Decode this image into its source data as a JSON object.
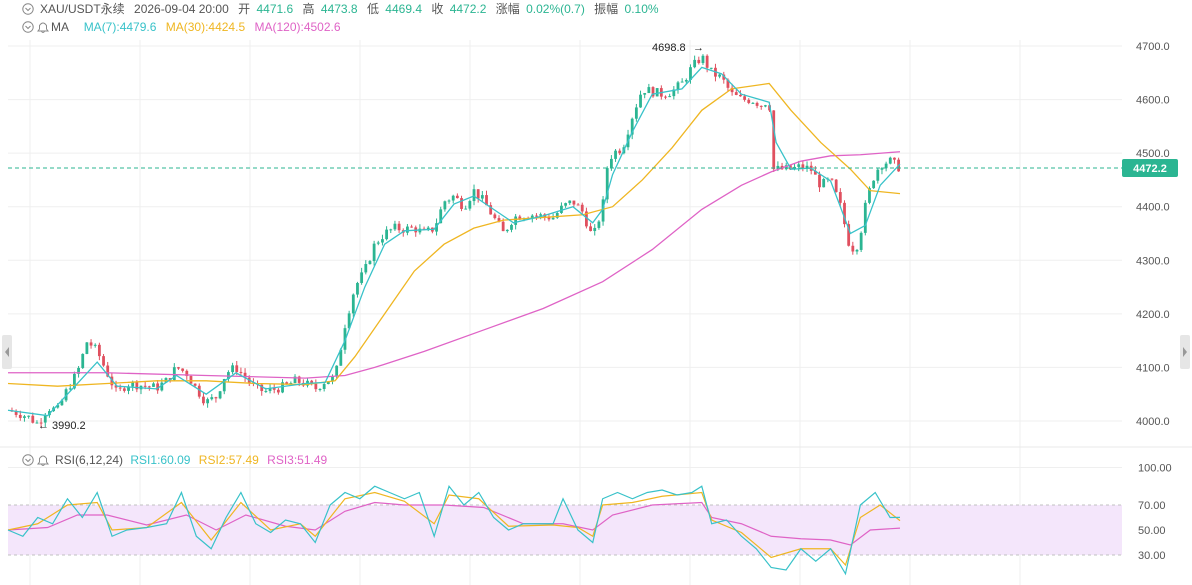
{
  "theme": {
    "up": "#2bb592",
    "down": "#e0505f",
    "ma7": "#38c2c9",
    "ma30": "#efb622",
    "ma120": "#df63c6",
    "rsi1": "#38c2c9",
    "rsi2": "#efb622",
    "rsi3": "#df63c6",
    "grid": "#efefef",
    "rsi_band": "#f4e6fb",
    "current_price_line": "#2bb592"
  },
  "header": {
    "symbol": "XAU/USDT永续",
    "datetime": "2026-09-04 20:00",
    "open_label": "开",
    "open": "4471.6",
    "high_label": "高",
    "high": "4473.8",
    "low_label": "低",
    "low": "4469.4",
    "close_label": "收",
    "close": "4472.2",
    "change_label": "涨幅",
    "change": "0.02%(0.7)",
    "amp_label": "振幅",
    "amp": "0.10%"
  },
  "ma_legend": {
    "name": "MA",
    "ma7": "MA(7):4479.6",
    "ma30": "MA(30):4424.5",
    "ma120": "MA(120):4502.6"
  },
  "rsi_legend": {
    "name": "RSI(6,12,24)",
    "rsi1": "RSI1:60.09",
    "rsi2": "RSI2:57.49",
    "rsi3": "RSI3:51.49"
  },
  "price_axis": {
    "ticks": [
      "4000.0",
      "4100.0",
      "4200.0",
      "4300.0",
      "4400.0",
      "4500.0",
      "4600.0",
      "4700.0"
    ],
    "current_price": "4472.2"
  },
  "rsi_axis": {
    "ticks": [
      "30.00",
      "50.00",
      "70.00",
      "100.00"
    ]
  },
  "annotations": {
    "high_marker": "4698.8",
    "low_marker": "3990.2"
  },
  "chart_data": {
    "type": "line",
    "title": "",
    "price_ylim": [
      3965,
      4730
    ],
    "rsi_ylim": [
      0,
      100
    ],
    "rsi_band": [
      30,
      70
    ],
    "current_price": 4472.2,
    "close_series": [
      [
        0,
        4020
      ],
      [
        10,
        4015
      ],
      [
        20,
        4008
      ],
      [
        30,
        3995
      ],
      [
        40,
        4025
      ],
      [
        50,
        4020
      ],
      [
        60,
        4060
      ],
      [
        70,
        4090
      ],
      [
        80,
        4150
      ],
      [
        90,
        4130
      ],
      [
        100,
        4090
      ],
      [
        110,
        4050
      ],
      [
        120,
        4070
      ],
      [
        130,
        4068
      ],
      [
        140,
        4065
      ],
      [
        150,
        4062
      ],
      [
        160,
        4075
      ],
      [
        170,
        4100
      ],
      [
        180,
        4090
      ],
      [
        190,
        4060
      ],
      [
        200,
        4035
      ],
      [
        210,
        4045
      ],
      [
        220,
        4090
      ],
      [
        230,
        4100
      ],
      [
        240,
        4080
      ],
      [
        250,
        4060
      ],
      [
        260,
        4055
      ],
      [
        270,
        4060
      ],
      [
        280,
        4065
      ],
      [
        290,
        4075
      ],
      [
        300,
        4070
      ],
      [
        310,
        4060
      ],
      [
        320,
        4075
      ],
      [
        330,
        4080
      ],
      [
        340,
        4180
      ],
      [
        350,
        4250
      ],
      [
        360,
        4280
      ],
      [
        370,
        4330
      ],
      [
        380,
        4350
      ],
      [
        390,
        4360
      ],
      [
        400,
        4358
      ],
      [
        410,
        4360
      ],
      [
        420,
        4350
      ],
      [
        430,
        4360
      ],
      [
        440,
        4410
      ],
      [
        450,
        4420
      ],
      [
        460,
        4400
      ],
      [
        470,
        4430
      ],
      [
        480,
        4410
      ],
      [
        490,
        4380
      ],
      [
        500,
        4350
      ],
      [
        510,
        4380
      ],
      [
        520,
        4385
      ],
      [
        530,
        4385
      ],
      [
        540,
        4382
      ],
      [
        550,
        4380
      ],
      [
        560,
        4400
      ],
      [
        570,
        4410
      ],
      [
        580,
        4390
      ],
      [
        590,
        4340
      ],
      [
        600,
        4400
      ],
      [
        605,
        4480
      ],
      [
        610,
        4500
      ],
      [
        620,
        4510
      ],
      [
        630,
        4570
      ],
      [
        640,
        4620
      ],
      [
        650,
        4615
      ],
      [
        660,
        4610
      ],
      [
        670,
        4615
      ],
      [
        680,
        4630
      ],
      [
        690,
        4660
      ],
      [
        700,
        4680
      ],
      [
        710,
        4650
      ],
      [
        720,
        4640
      ],
      [
        730,
        4610
      ],
      [
        740,
        4600
      ],
      [
        750,
        4600
      ],
      [
        760,
        4590
      ],
      [
        768,
        4600
      ],
      [
        772,
        4470
      ],
      [
        780,
        4470
      ],
      [
        790,
        4470
      ],
      [
        800,
        4475
      ],
      [
        810,
        4470
      ],
      [
        820,
        4440
      ],
      [
        830,
        4450
      ],
      [
        840,
        4400
      ],
      [
        850,
        4320
      ],
      [
        858,
        4330
      ],
      [
        865,
        4400
      ],
      [
        872,
        4450
      ],
      [
        880,
        4480
      ],
      [
        890,
        4485
      ],
      [
        900,
        4472
      ]
    ],
    "ma_series": [
      {
        "name": "MA(7)",
        "values": [
          [
            0,
            4020
          ],
          [
            40,
            4010
          ],
          [
            60,
            4050
          ],
          [
            90,
            4110
          ],
          [
            110,
            4065
          ],
          [
            150,
            4060
          ],
          [
            170,
            4085
          ],
          [
            200,
            4050
          ],
          [
            230,
            4090
          ],
          [
            260,
            4060
          ],
          [
            300,
            4070
          ],
          [
            320,
            4072
          ],
          [
            340,
            4150
          ],
          [
            360,
            4250
          ],
          [
            380,
            4330
          ],
          [
            400,
            4355
          ],
          [
            430,
            4358
          ],
          [
            450,
            4405
          ],
          [
            470,
            4420
          ],
          [
            490,
            4395
          ],
          [
            510,
            4370
          ],
          [
            540,
            4383
          ],
          [
            570,
            4400
          ],
          [
            590,
            4370
          ],
          [
            600,
            4395
          ],
          [
            610,
            4460
          ],
          [
            630,
            4540
          ],
          [
            650,
            4610
          ],
          [
            680,
            4620
          ],
          [
            700,
            4660
          ],
          [
            720,
            4648
          ],
          [
            740,
            4610
          ],
          [
            768,
            4595
          ],
          [
            775,
            4520
          ],
          [
            790,
            4470
          ],
          [
            810,
            4472
          ],
          [
            830,
            4448
          ],
          [
            850,
            4350
          ],
          [
            865,
            4365
          ],
          [
            880,
            4440
          ],
          [
            900,
            4479.6
          ]
        ]
      },
      {
        "name": "MA(30)",
        "values": [
          [
            0,
            4070
          ],
          [
            50,
            4065
          ],
          [
            100,
            4070
          ],
          [
            150,
            4075
          ],
          [
            200,
            4075
          ],
          [
            250,
            4070
          ],
          [
            300,
            4068
          ],
          [
            330,
            4075
          ],
          [
            350,
            4120
          ],
          [
            380,
            4200
          ],
          [
            410,
            4280
          ],
          [
            440,
            4330
          ],
          [
            470,
            4360
          ],
          [
            500,
            4375
          ],
          [
            540,
            4380
          ],
          [
            580,
            4385
          ],
          [
            610,
            4400
          ],
          [
            640,
            4450
          ],
          [
            670,
            4510
          ],
          [
            700,
            4580
          ],
          [
            730,
            4620
          ],
          [
            768,
            4630
          ],
          [
            790,
            4580
          ],
          [
            820,
            4520
          ],
          [
            850,
            4470
          ],
          [
            870,
            4430
          ],
          [
            900,
            4424.5
          ]
        ]
      },
      {
        "name": "MA(120)",
        "values": [
          [
            0,
            4090
          ],
          [
            100,
            4090
          ],
          [
            200,
            4085
          ],
          [
            300,
            4080
          ],
          [
            340,
            4085
          ],
          [
            370,
            4100
          ],
          [
            420,
            4130
          ],
          [
            480,
            4170
          ],
          [
            540,
            4210
          ],
          [
            600,
            4260
          ],
          [
            650,
            4320
          ],
          [
            700,
            4395
          ],
          [
            740,
            4440
          ],
          [
            770,
            4465
          ],
          [
            800,
            4485
          ],
          [
            830,
            4495
          ],
          [
            860,
            4497
          ],
          [
            900,
            4502.6
          ]
        ]
      }
    ],
    "rsi_series": [
      {
        "name": "RSI1",
        "values": [
          [
            0,
            50
          ],
          [
            15,
            45
          ],
          [
            30,
            60
          ],
          [
            45,
            55
          ],
          [
            60,
            75
          ],
          [
            75,
            60
          ],
          [
            90,
            80
          ],
          [
            105,
            45
          ],
          [
            120,
            50
          ],
          [
            140,
            52
          ],
          [
            160,
            55
          ],
          [
            175,
            80
          ],
          [
            190,
            45
          ],
          [
            205,
            35
          ],
          [
            220,
            60
          ],
          [
            235,
            80
          ],
          [
            250,
            55
          ],
          [
            265,
            48
          ],
          [
            280,
            58
          ],
          [
            295,
            55
          ],
          [
            310,
            40
          ],
          [
            325,
            70
          ],
          [
            340,
            80
          ],
          [
            355,
            75
          ],
          [
            370,
            85
          ],
          [
            385,
            80
          ],
          [
            400,
            75
          ],
          [
            415,
            80
          ],
          [
            430,
            45
          ],
          [
            445,
            85
          ],
          [
            460,
            70
          ],
          [
            475,
            80
          ],
          [
            490,
            60
          ],
          [
            505,
            50
          ],
          [
            520,
            55
          ],
          [
            535,
            55
          ],
          [
            550,
            55
          ],
          [
            560,
            75
          ],
          [
            575,
            50
          ],
          [
            590,
            40
          ],
          [
            600,
            75
          ],
          [
            615,
            80
          ],
          [
            630,
            75
          ],
          [
            645,
            80
          ],
          [
            660,
            82
          ],
          [
            675,
            78
          ],
          [
            690,
            80
          ],
          [
            700,
            85
          ],
          [
            710,
            55
          ],
          [
            725,
            58
          ],
          [
            740,
            45
          ],
          [
            755,
            35
          ],
          [
            770,
            20
          ],
          [
            785,
            18
          ],
          [
            800,
            35
          ],
          [
            815,
            25
          ],
          [
            830,
            35
          ],
          [
            845,
            15
          ],
          [
            860,
            70
          ],
          [
            875,
            80
          ],
          [
            890,
            60
          ],
          [
            900,
            60.09
          ]
        ]
      },
      {
        "name": "RSI2",
        "values": [
          [
            0,
            50
          ],
          [
            30,
            55
          ],
          [
            60,
            70
          ],
          [
            90,
            72
          ],
          [
            105,
            50
          ],
          [
            140,
            52
          ],
          [
            175,
            72
          ],
          [
            205,
            42
          ],
          [
            235,
            72
          ],
          [
            265,
            50
          ],
          [
            295,
            55
          ],
          [
            310,
            45
          ],
          [
            340,
            75
          ],
          [
            370,
            80
          ],
          [
            400,
            73
          ],
          [
            430,
            55
          ],
          [
            445,
            78
          ],
          [
            475,
            75
          ],
          [
            505,
            53
          ],
          [
            550,
            54
          ],
          [
            575,
            52
          ],
          [
            590,
            45
          ],
          [
            600,
            70
          ],
          [
            630,
            72
          ],
          [
            660,
            77
          ],
          [
            700,
            80
          ],
          [
            710,
            58
          ],
          [
            740,
            48
          ],
          [
            770,
            28
          ],
          [
            800,
            35
          ],
          [
            830,
            35
          ],
          [
            845,
            22
          ],
          [
            860,
            60
          ],
          [
            880,
            70
          ],
          [
            900,
            57.49
          ]
        ]
      },
      {
        "name": "RSI3",
        "values": [
          [
            0,
            50
          ],
          [
            40,
            52
          ],
          [
            70,
            62
          ],
          [
            100,
            62
          ],
          [
            140,
            54
          ],
          [
            180,
            62
          ],
          [
            210,
            50
          ],
          [
            240,
            62
          ],
          [
            280,
            53
          ],
          [
            310,
            50
          ],
          [
            340,
            65
          ],
          [
            370,
            72
          ],
          [
            400,
            70
          ],
          [
            440,
            70
          ],
          [
            480,
            68
          ],
          [
            520,
            55
          ],
          [
            560,
            55
          ],
          [
            590,
            50
          ],
          [
            610,
            62
          ],
          [
            650,
            70
          ],
          [
            700,
            72
          ],
          [
            710,
            60
          ],
          [
            740,
            55
          ],
          [
            770,
            45
          ],
          [
            800,
            43
          ],
          [
            830,
            42
          ],
          [
            850,
            38
          ],
          [
            870,
            50
          ],
          [
            900,
            51.49
          ]
        ]
      }
    ]
  }
}
